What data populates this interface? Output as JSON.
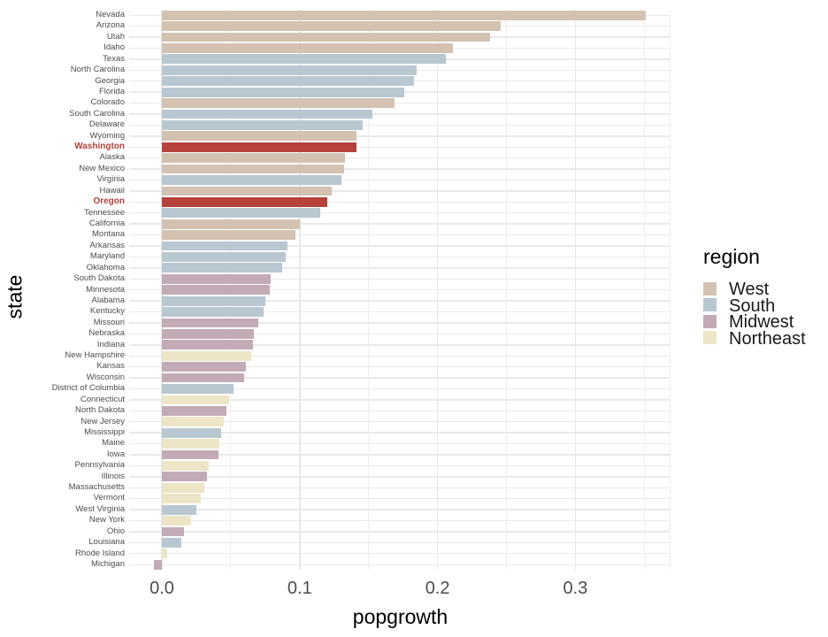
{
  "chart_data": {
    "type": "bar",
    "orientation": "horizontal",
    "title": "",
    "xlabel": "popgrowth",
    "ylabel": "state",
    "xlim": [
      -0.024,
      0.37
    ],
    "x_ticks": [
      {
        "value": 0.0,
        "label": "0.0"
      },
      {
        "value": 0.1,
        "label": "0.1"
      },
      {
        "value": 0.2,
        "label": "0.2"
      },
      {
        "value": 0.3,
        "label": "0.3"
      }
    ],
    "grid": "on",
    "gridline_values": [
      0.0,
      0.05,
      0.1,
      0.15,
      0.2,
      0.25,
      0.3,
      0.35,
      0.369
    ],
    "legend": {
      "title": "region",
      "position": "right",
      "entries": [
        {
          "label": "West",
          "color": "#d3c2b1"
        },
        {
          "label": "South",
          "color": "#b9c7d1"
        },
        {
          "label": "Midwest",
          "color": "#c2abb7"
        },
        {
          "label": "Northeast",
          "color": "#ece5c6"
        }
      ]
    },
    "region_colors": {
      "West": "#d3c2b1",
      "South": "#b9c7d1",
      "Midwest": "#c2abb7",
      "Northeast": "#ece5c6"
    },
    "highlight_color": "#b5433a",
    "highlight_label_color": "#b0413a",
    "highlighted_states": [
      "Washington",
      "Oregon"
    ],
    "states": [
      {
        "name": "Nevada",
        "region": "West",
        "value": 0.351
      },
      {
        "name": "Arizona",
        "region": "West",
        "value": 0.246
      },
      {
        "name": "Utah",
        "region": "West",
        "value": 0.238
      },
      {
        "name": "Idaho",
        "region": "West",
        "value": 0.211
      },
      {
        "name": "Texas",
        "region": "South",
        "value": 0.206
      },
      {
        "name": "North Carolina",
        "region": "South",
        "value": 0.185
      },
      {
        "name": "Georgia",
        "region": "South",
        "value": 0.183
      },
      {
        "name": "Florida",
        "region": "South",
        "value": 0.176
      },
      {
        "name": "Colorado",
        "region": "West",
        "value": 0.169
      },
      {
        "name": "South Carolina",
        "region": "South",
        "value": 0.153
      },
      {
        "name": "Delaware",
        "region": "South",
        "value": 0.146
      },
      {
        "name": "Wyoming",
        "region": "West",
        "value": 0.141
      },
      {
        "name": "Washington",
        "region": "West",
        "value": 0.141
      },
      {
        "name": "Alaska",
        "region": "West",
        "value": 0.133
      },
      {
        "name": "New Mexico",
        "region": "West",
        "value": 0.132
      },
      {
        "name": "Virginia",
        "region": "South",
        "value": 0.13
      },
      {
        "name": "Hawaii",
        "region": "West",
        "value": 0.123
      },
      {
        "name": "Oregon",
        "region": "West",
        "value": 0.12
      },
      {
        "name": "Tennessee",
        "region": "South",
        "value": 0.115
      },
      {
        "name": "California",
        "region": "West",
        "value": 0.1
      },
      {
        "name": "Montana",
        "region": "West",
        "value": 0.097
      },
      {
        "name": "Arkansas",
        "region": "South",
        "value": 0.091
      },
      {
        "name": "Maryland",
        "region": "South",
        "value": 0.09
      },
      {
        "name": "Oklahoma",
        "region": "South",
        "value": 0.087
      },
      {
        "name": "South Dakota",
        "region": "Midwest",
        "value": 0.079
      },
      {
        "name": "Minnesota",
        "region": "Midwest",
        "value": 0.078
      },
      {
        "name": "Alabama",
        "region": "South",
        "value": 0.075
      },
      {
        "name": "Kentucky",
        "region": "South",
        "value": 0.074
      },
      {
        "name": "Missouri",
        "region": "Midwest",
        "value": 0.07
      },
      {
        "name": "Nebraska",
        "region": "Midwest",
        "value": 0.067
      },
      {
        "name": "Indiana",
        "region": "Midwest",
        "value": 0.066
      },
      {
        "name": "New Hampshire",
        "region": "Northeast",
        "value": 0.065
      },
      {
        "name": "Kansas",
        "region": "Midwest",
        "value": 0.061
      },
      {
        "name": "Wisconsin",
        "region": "Midwest",
        "value": 0.06
      },
      {
        "name": "District of Columbia",
        "region": "South",
        "value": 0.052
      },
      {
        "name": "Connecticut",
        "region": "Northeast",
        "value": 0.049
      },
      {
        "name": "North Dakota",
        "region": "Midwest",
        "value": 0.047
      },
      {
        "name": "New Jersey",
        "region": "Northeast",
        "value": 0.045
      },
      {
        "name": "Mississippi",
        "region": "South",
        "value": 0.043
      },
      {
        "name": "Maine",
        "region": "Northeast",
        "value": 0.042
      },
      {
        "name": "Iowa",
        "region": "Midwest",
        "value": 0.041
      },
      {
        "name": "Pennsylvania",
        "region": "Northeast",
        "value": 0.034
      },
      {
        "name": "Illinois",
        "region": "Midwest",
        "value": 0.033
      },
      {
        "name": "Massachusetts",
        "region": "Northeast",
        "value": 0.031
      },
      {
        "name": "Vermont",
        "region": "Northeast",
        "value": 0.028
      },
      {
        "name": "West Virginia",
        "region": "South",
        "value": 0.025
      },
      {
        "name": "New York",
        "region": "Northeast",
        "value": 0.021
      },
      {
        "name": "Ohio",
        "region": "Midwest",
        "value": 0.016
      },
      {
        "name": "Louisiana",
        "region": "South",
        "value": 0.014
      },
      {
        "name": "Rhode Island",
        "region": "Northeast",
        "value": 0.004
      },
      {
        "name": "Michigan",
        "region": "Midwest",
        "value": -0.006
      }
    ]
  }
}
